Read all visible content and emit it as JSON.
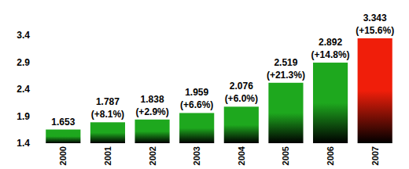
{
  "chart_data": {
    "type": "bar",
    "categories": [
      "2000",
      "2001",
      "2002",
      "2003",
      "2004",
      "2005",
      "2006",
      "2007"
    ],
    "values": [
      1.653,
      1.787,
      1.838,
      1.959,
      2.076,
      2.519,
      2.892,
      3.343
    ],
    "growth": [
      null,
      8.1,
      2.9,
      6.6,
      6,
      21.3,
      14.8,
      15.6
    ],
    "growth_labels": [
      null,
      "(+8.1%)",
      "(+2.9%)",
      "(+6.6%)",
      "(+6.0%)",
      "(+21.3%)",
      "(+14.8%)",
      "(+15.6%)"
    ],
    "colors": [
      "#1ea81e",
      "#1ea81e",
      "#1ea81e",
      "#1ea81e",
      "#1ea81e",
      "#1ea81e",
      "#1ea81e",
      "#f01e0a"
    ],
    "ylim": [
      1.4,
      3.4
    ],
    "yticks": [
      1.4,
      1.9,
      2.4,
      2.9,
      3.4
    ],
    "grid": false,
    "data_labels": true
  }
}
